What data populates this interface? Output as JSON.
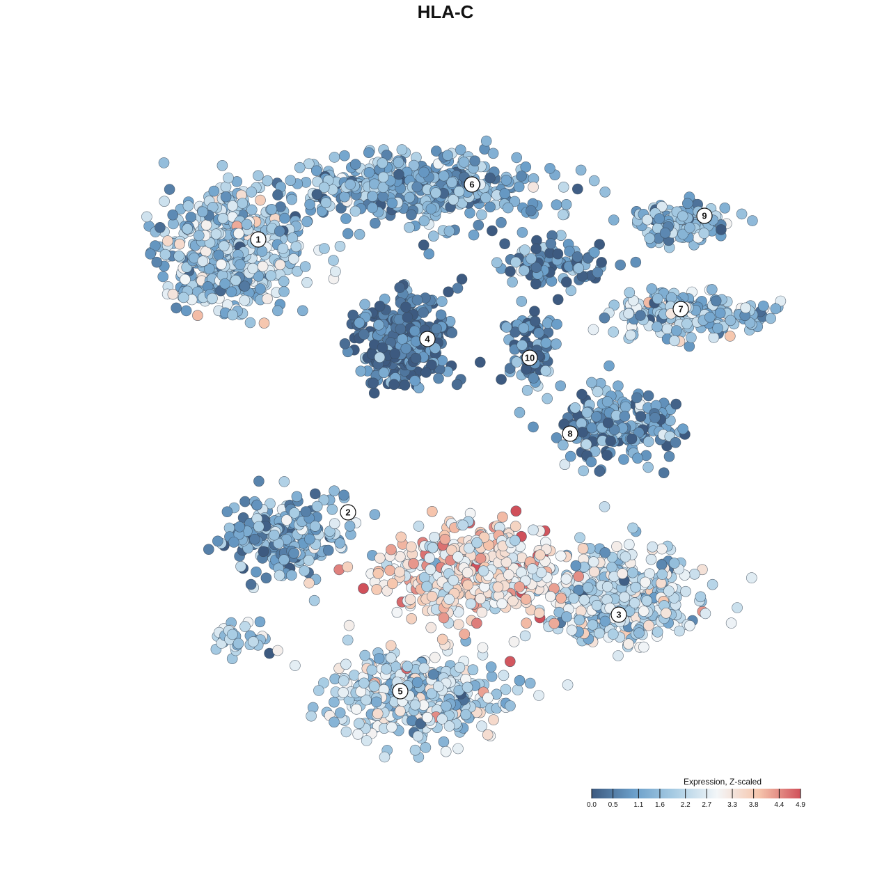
{
  "title": "HLA-C",
  "chart_data": {
    "type": "scatter",
    "title": "HLA-C",
    "xlabel": "",
    "ylabel": "",
    "grid": false,
    "legend_placement": "bottom-right",
    "color_scale": {
      "title": "Expression, Z-scaled",
      "min": 0.0,
      "max": 4.9,
      "ticks": [
        "0.0",
        "0.5",
        "1.1",
        "1.6",
        "2.2",
        "2.7",
        "3.3",
        "3.8",
        "4.4",
        "4.9"
      ],
      "colors": [
        "#3d5a80",
        "#6a9ec9",
        "#a9cde4",
        "#f3f6f8",
        "#f6c6ad",
        "#d0505a"
      ]
    },
    "clusters": [
      {
        "label": "1",
        "mean_expression": 1.8
      },
      {
        "label": "2",
        "mean_expression": 1.3
      },
      {
        "label": "3",
        "mean_expression": 2.2
      },
      {
        "label": "4",
        "mean_expression": 0.4
      },
      {
        "label": "5",
        "mean_expression": 2.2
      },
      {
        "label": "6",
        "mean_expression": 1.4
      },
      {
        "label": "7",
        "mean_expression": 1.8
      },
      {
        "label": "8",
        "mean_expression": 1.0
      },
      {
        "label": "9",
        "mean_expression": 1.5
      },
      {
        "label": "10",
        "mean_expression": 0.7
      },
      {
        "label": "",
        "mean_expression": 3.3
      }
    ]
  }
}
